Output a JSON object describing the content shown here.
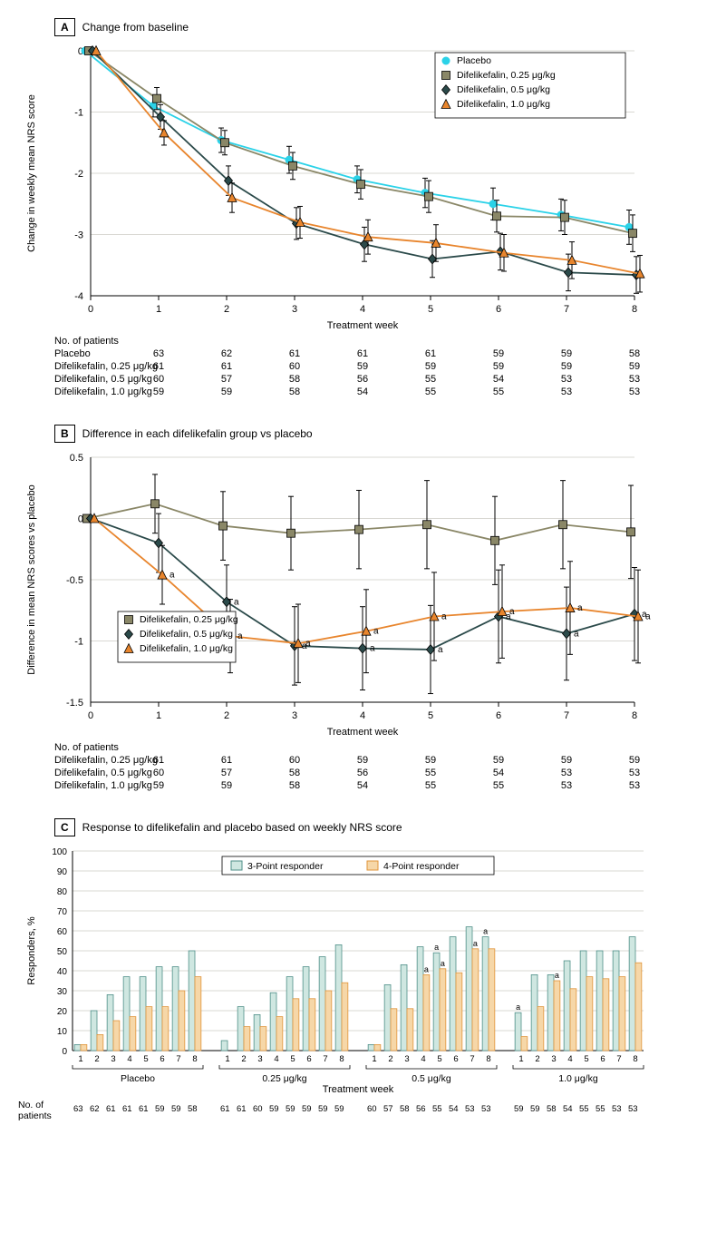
{
  "panelA": {
    "letter": "A",
    "caption": "Change from baseline",
    "type": "line-errorbar",
    "xlabel": "Treatment week",
    "ylabel": "Change in weekly mean NRS score",
    "x_ticks": [
      0,
      1,
      2,
      3,
      4,
      5,
      6,
      7,
      8
    ],
    "ylim": [
      -4,
      0
    ],
    "y_ticks": [
      0,
      -1,
      -2,
      -3,
      -4
    ],
    "background_color": "#ffffff",
    "grid_color": "#d9d8d3",
    "axis_color": "#000000",
    "label_fontsize": 11,
    "legend_pos": "top-right",
    "series": [
      {
        "id": "placebo",
        "label": "Placebo",
        "color": "#2bd2e8",
        "marker": "circle",
        "marker_fill": "#2bd2e8",
        "x": [
          0,
          1,
          2,
          3,
          4,
          5,
          6,
          7,
          8
        ],
        "y": [
          0.0,
          -0.9,
          -1.46,
          -1.78,
          -2.1,
          -2.32,
          -2.5,
          -2.68,
          -2.88
        ],
        "err": [
          0,
          0.18,
          0.2,
          0.22,
          0.22,
          0.24,
          0.26,
          0.26,
          0.28
        ]
      },
      {
        "id": "d025",
        "label": "Difelikefalin, 0.25 μg/kg",
        "color": "#8a8767",
        "marker": "square",
        "marker_fill": "#8a8767",
        "x": [
          0,
          1,
          2,
          3,
          4,
          5,
          6,
          7,
          8
        ],
        "y": [
          0.0,
          -0.78,
          -1.5,
          -1.88,
          -2.18,
          -2.38,
          -2.7,
          -2.72,
          -2.98
        ],
        "err": [
          0,
          0.18,
          0.2,
          0.22,
          0.24,
          0.26,
          0.26,
          0.28,
          0.3
        ]
      },
      {
        "id": "d05",
        "label": "Difelikefalin, 0.5 μg/kg",
        "color": "#2b4a4a",
        "marker": "diamond",
        "marker_fill": "#2b4a4a",
        "x": [
          0,
          1,
          2,
          3,
          4,
          5,
          6,
          7,
          8
        ],
        "y": [
          0.0,
          -1.08,
          -2.12,
          -2.82,
          -3.16,
          -3.4,
          -3.28,
          -3.62,
          -3.66
        ],
        "err": [
          0,
          0.2,
          0.24,
          0.26,
          0.28,
          0.3,
          0.3,
          0.3,
          0.3
        ]
      },
      {
        "id": "d10",
        "label": "Difelikefalin, 1.0 μg/kg",
        "color": "#e8852d",
        "marker": "triangle",
        "marker_fill": "#e8852d",
        "x": [
          0,
          1,
          2,
          3,
          4,
          5,
          6,
          7,
          8
        ],
        "y": [
          0.0,
          -1.34,
          -2.4,
          -2.8,
          -3.04,
          -3.14,
          -3.3,
          -3.42,
          -3.64
        ],
        "err": [
          0,
          0.2,
          0.24,
          0.26,
          0.28,
          0.3,
          0.3,
          0.3,
          0.3
        ]
      }
    ],
    "nop": {
      "header": "No. of patients",
      "rows": [
        {
          "label": "Placebo",
          "cells": [
            63,
            62,
            61,
            61,
            61,
            59,
            59,
            58
          ]
        },
        {
          "label": "Difelikefalin, 0.25 μg/kg",
          "cells": [
            61,
            61,
            60,
            59,
            59,
            59,
            59,
            59
          ]
        },
        {
          "label": "Difelikefalin, 0.5 μg/kg",
          "cells": [
            60,
            57,
            58,
            56,
            55,
            54,
            53,
            53
          ]
        },
        {
          "label": "Difelikefalin, 1.0 μg/kg",
          "cells": [
            59,
            59,
            58,
            54,
            55,
            55,
            53,
            53
          ]
        }
      ]
    }
  },
  "panelB": {
    "letter": "B",
    "caption": "Difference in each difelikefalin group vs placebo",
    "type": "line-errorbar",
    "xlabel": "Treatment week",
    "ylabel": "Difference in mean NRS scores vs placebo",
    "x_ticks": [
      0,
      1,
      2,
      3,
      4,
      5,
      6,
      7,
      8
    ],
    "ylim": [
      -1.5,
      0.5
    ],
    "y_ticks": [
      0.5,
      0,
      -0.5,
      -1.0,
      -1.5
    ],
    "background_color": "#ffffff",
    "grid_color": "#d9d8d3",
    "axis_color": "#000000",
    "label_fontsize": 11,
    "legend_pos": "mid-left",
    "series": [
      {
        "id": "d025",
        "label": "Difelikefalin, 0.25 μg/kg",
        "color": "#8a8767",
        "marker": "square",
        "marker_fill": "#8a8767",
        "x": [
          0,
          1,
          2,
          3,
          4,
          5,
          6,
          7,
          8
        ],
        "y": [
          0.0,
          0.12,
          -0.06,
          -0.12,
          -0.09,
          -0.05,
          -0.18,
          -0.05,
          -0.11
        ],
        "err": [
          0,
          0.24,
          0.28,
          0.3,
          0.32,
          0.36,
          0.36,
          0.36,
          0.38
        ],
        "sig": [
          false,
          false,
          false,
          false,
          false,
          false,
          false,
          false,
          false
        ]
      },
      {
        "id": "d05",
        "label": "Difelikefalin, 0.5 μg/kg",
        "color": "#2b4a4a",
        "marker": "diamond",
        "marker_fill": "#2b4a4a",
        "x": [
          0,
          1,
          2,
          3,
          4,
          5,
          6,
          7,
          8
        ],
        "y": [
          0.0,
          -0.2,
          -0.68,
          -1.04,
          -1.06,
          -1.07,
          -0.8,
          -0.94,
          -0.78
        ],
        "err": [
          0,
          0.24,
          0.3,
          0.32,
          0.34,
          0.36,
          0.38,
          0.38,
          0.38
        ],
        "sig": [
          false,
          false,
          true,
          true,
          true,
          true,
          true,
          true,
          true
        ]
      },
      {
        "id": "d10",
        "label": "Difelikefalin, 1.0 μg/kg",
        "color": "#e8852d",
        "marker": "triangle",
        "marker_fill": "#e8852d",
        "x": [
          0,
          1,
          2,
          3,
          4,
          5,
          6,
          7,
          8
        ],
        "y": [
          0.0,
          -0.46,
          -0.96,
          -1.02,
          -0.92,
          -0.8,
          -0.76,
          -0.73,
          -0.8
        ],
        "err": [
          0,
          0.24,
          0.3,
          0.32,
          0.34,
          0.36,
          0.38,
          0.38,
          0.38
        ],
        "sig": [
          false,
          true,
          true,
          true,
          true,
          true,
          true,
          true,
          true
        ]
      }
    ],
    "nop": {
      "header": "No. of patients",
      "rows": [
        {
          "label": "Difelikefalin, 0.25 μg/kg",
          "cells": [
            61,
            61,
            60,
            59,
            59,
            59,
            59,
            59
          ]
        },
        {
          "label": "Difelikefalin, 0.5 μg/kg",
          "cells": [
            60,
            57,
            58,
            56,
            55,
            54,
            53,
            53
          ]
        },
        {
          "label": "Difelikefalin, 1.0 μg/kg",
          "cells": [
            59,
            59,
            58,
            54,
            55,
            55,
            53,
            53
          ]
        }
      ]
    }
  },
  "panelC": {
    "letter": "C",
    "caption": "Response to difelikefalin and placebo based on weekly NRS score",
    "type": "grouped-bar",
    "xlabel": "Treatment week",
    "ylabel": "Responders, %",
    "ylim": [
      0,
      100
    ],
    "y_ticks": [
      0,
      10,
      20,
      30,
      40,
      50,
      60,
      70,
      80,
      90,
      100
    ],
    "background_color": "#ffffff",
    "grid_color": "#d9d8d3",
    "axis_color": "#000000",
    "week_labels": [
      1,
      2,
      3,
      4,
      5,
      6,
      7,
      8
    ],
    "legend": [
      {
        "label": "3-Point responder",
        "fill": "#cfe7e1",
        "stroke": "#4f8f88"
      },
      {
        "label": "4-Point responder",
        "fill": "#f6d7a8",
        "stroke": "#e0943a"
      }
    ],
    "groups": [
      {
        "label": "Placebo",
        "three": [
          3,
          20,
          28,
          37,
          37,
          42,
          42,
          50
        ],
        "four": [
          3,
          8,
          15,
          17,
          22,
          22,
          30,
          37
        ],
        "sig_three": [
          false,
          false,
          false,
          false,
          false,
          false,
          false,
          false
        ],
        "sig_four": [
          false,
          false,
          false,
          false,
          false,
          false,
          false,
          false
        ],
        "n": [
          63,
          62,
          61,
          61,
          61,
          59,
          59,
          58
        ]
      },
      {
        "label": "0.25 μg/kg",
        "three": [
          5,
          22,
          18,
          29,
          37,
          42,
          47,
          53
        ],
        "four": [
          0,
          12,
          12,
          17,
          26,
          26,
          30,
          34
        ],
        "sig_three": [
          false,
          false,
          false,
          false,
          false,
          false,
          false,
          false
        ],
        "sig_four": [
          false,
          false,
          false,
          false,
          false,
          false,
          false,
          false
        ],
        "n": [
          61,
          61,
          60,
          59,
          59,
          59,
          59,
          59
        ]
      },
      {
        "label": "0.5 μg/kg",
        "three": [
          3,
          33,
          43,
          52,
          49,
          57,
          62,
          57
        ],
        "four": [
          3,
          21,
          21,
          38,
          41,
          39,
          51,
          51
        ],
        "sig_three": [
          false,
          false,
          false,
          false,
          true,
          false,
          false,
          true
        ],
        "sig_four": [
          false,
          false,
          false,
          true,
          true,
          false,
          true,
          false
        ],
        "n": [
          60,
          57,
          58,
          56,
          55,
          54,
          53,
          53
        ]
      },
      {
        "label": "1.0 μg/kg",
        "three": [
          19,
          38,
          38,
          45,
          50,
          50,
          50,
          57
        ],
        "four": [
          7,
          22,
          35,
          31,
          37,
          36,
          37,
          44
        ],
        "sig_three": [
          true,
          false,
          false,
          false,
          false,
          false,
          false,
          false
        ],
        "sig_four": [
          false,
          false,
          true,
          false,
          false,
          false,
          false,
          false
        ],
        "n": [
          59,
          59,
          58,
          54,
          55,
          55,
          53,
          53
        ]
      }
    ],
    "nop_label": "No. of patients"
  }
}
